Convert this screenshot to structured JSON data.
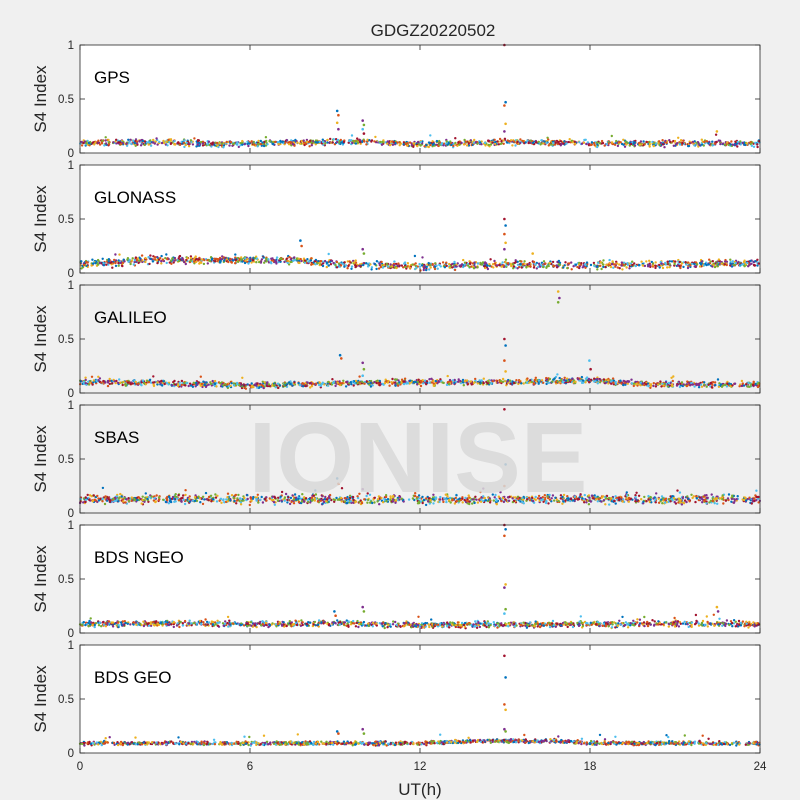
{
  "chart_data": {
    "type": "scatter",
    "title": "GDGZ20220502",
    "xlabel": "UT(h)",
    "ylabel": "S4 Index",
    "xlim": [
      0,
      24
    ],
    "ylim": [
      0,
      1
    ],
    "xticks": [
      "0",
      "6",
      "12",
      "18",
      "24"
    ],
    "yticks": [
      "0",
      "0.5",
      "1"
    ],
    "watermark": "IONISE",
    "series_colors": [
      "#0072bd",
      "#d95319",
      "#edb120",
      "#7e2f8e",
      "#77ac30",
      "#4dbeee",
      "#a2142f"
    ],
    "panels": [
      {
        "name": "GPS",
        "background": "#ffffff",
        "baseline": [
          [
            0,
            0.09
          ],
          [
            3,
            0.1
          ],
          [
            5,
            0.08
          ],
          [
            7,
            0.09
          ],
          [
            10,
            0.11
          ],
          [
            12,
            0.08
          ],
          [
            15,
            0.1
          ],
          [
            18,
            0.09
          ],
          [
            21,
            0.09
          ],
          [
            24,
            0.09
          ]
        ],
        "spread": 0.04,
        "spikes": [
          {
            "x": 9.1,
            "y": [
              0.39,
              0.35,
              0.28,
              0.22
            ]
          },
          {
            "x": 10.0,
            "y": [
              0.3,
              0.26,
              0.22,
              0.18
            ]
          },
          {
            "x": 15.0,
            "y": [
              1.0,
              0.47,
              0.44,
              0.27,
              0.2
            ]
          },
          {
            "x": 22.5,
            "y": [
              0.2
            ]
          }
        ]
      },
      {
        "name": "GLONASS",
        "background": "#ffffff",
        "baseline": [
          [
            0,
            0.08
          ],
          [
            2.5,
            0.12
          ],
          [
            4.5,
            0.12
          ],
          [
            7.5,
            0.12
          ],
          [
            9,
            0.08
          ],
          [
            12,
            0.06
          ],
          [
            15,
            0.08
          ],
          [
            18,
            0.07
          ],
          [
            21,
            0.08
          ],
          [
            24,
            0.09
          ]
        ],
        "spread": 0.05,
        "spikes": [
          {
            "x": 7.8,
            "y": [
              0.3,
              0.25
            ]
          },
          {
            "x": 10.0,
            "y": [
              0.22,
              0.18
            ]
          },
          {
            "x": 15.0,
            "y": [
              0.5,
              0.44,
              0.36,
              0.28,
              0.22
            ]
          },
          {
            "x": 16.0,
            "y": [
              0.18
            ]
          }
        ]
      },
      {
        "name": "GALILEO",
        "background": "#f0f0f0",
        "baseline": [
          [
            0,
            0.1
          ],
          [
            3,
            0.09
          ],
          [
            6,
            0.07
          ],
          [
            9,
            0.09
          ],
          [
            12,
            0.1
          ],
          [
            15,
            0.1
          ],
          [
            18,
            0.12
          ],
          [
            20,
            0.08
          ],
          [
            24,
            0.08
          ]
        ],
        "spread": 0.04,
        "spikes": [
          {
            "x": 9.2,
            "y": [
              0.35,
              0.32
            ]
          },
          {
            "x": 10.0,
            "y": [
              0.28,
              0.22,
              0.16
            ]
          },
          {
            "x": 15.0,
            "y": [
              0.5,
              0.44,
              0.3,
              0.2
            ]
          },
          {
            "x": 16.9,
            "y": [
              0.94,
              0.88,
              0.84
            ]
          },
          {
            "x": 18.0,
            "y": [
              0.3,
              0.22
            ]
          }
        ]
      },
      {
        "name": "SBAS",
        "background": "#f0f0f0",
        "baseline": [
          [
            0,
            0.13
          ],
          [
            6,
            0.13
          ],
          [
            12,
            0.12
          ],
          [
            18,
            0.13
          ],
          [
            24,
            0.13
          ]
        ],
        "spread": 0.06,
        "spikes": [
          {
            "x": 9.1,
            "y": [
              0.32,
              0.27
            ]
          },
          {
            "x": 10.0,
            "y": [
              0.22
            ]
          },
          {
            "x": 15.0,
            "y": [
              0.96,
              0.45,
              0.25
            ]
          }
        ]
      },
      {
        "name": "BDS NGEO",
        "background": "#ffffff",
        "baseline": [
          [
            0,
            0.08
          ],
          [
            3,
            0.09
          ],
          [
            6,
            0.08
          ],
          [
            9,
            0.09
          ],
          [
            12,
            0.07
          ],
          [
            15,
            0.08
          ],
          [
            18,
            0.08
          ],
          [
            21,
            0.09
          ],
          [
            24,
            0.08
          ]
        ],
        "spread": 0.04,
        "spikes": [
          {
            "x": 9.0,
            "y": [
              0.2,
              0.16
            ]
          },
          {
            "x": 10.0,
            "y": [
              0.24,
              0.2
            ]
          },
          {
            "x": 15.0,
            "y": [
              1.0,
              0.96,
              0.9,
              0.45,
              0.42,
              0.22,
              0.18
            ]
          },
          {
            "x": 22.5,
            "y": [
              0.24,
              0.2
            ]
          }
        ]
      },
      {
        "name": "BDS GEO",
        "background": "#ffffff",
        "baseline": [
          [
            0,
            0.09
          ],
          [
            6,
            0.09
          ],
          [
            12,
            0.09
          ],
          [
            14,
            0.11
          ],
          [
            17,
            0.11
          ],
          [
            18,
            0.09
          ],
          [
            24,
            0.09
          ]
        ],
        "spread": 0.025,
        "spikes": [
          {
            "x": 9.1,
            "y": [
              0.2,
              0.18
            ]
          },
          {
            "x": 10.0,
            "y": [
              0.22,
              0.18
            ]
          },
          {
            "x": 15.0,
            "y": [
              0.9,
              0.7,
              0.45,
              0.4,
              0.22,
              0.2
            ]
          }
        ]
      }
    ]
  }
}
